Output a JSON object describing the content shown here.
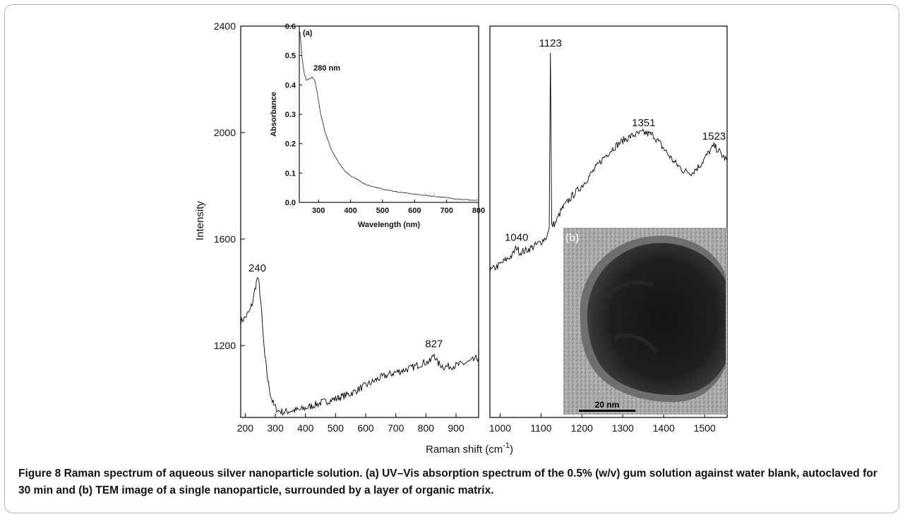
{
  "chart_data": [
    {
      "id": "raman",
      "type": "line",
      "xlabel": "Raman shift (cm",
      "xlabel_superscript": "-1",
      "xlabel_suffix": ")",
      "ylabel": "Intensity",
      "xlim_left": [
        185,
        975
      ],
      "xlim_right": [
        975,
        1555
      ],
      "ylim": [
        930,
        2400
      ],
      "x_ticks_left": [
        200,
        300,
        400,
        500,
        600,
        700,
        800,
        900
      ],
      "x_ticks_right": [
        1000,
        1100,
        1200,
        1300,
        1400,
        1500
      ],
      "y_ticks": [
        1200,
        1600,
        2000,
        2400
      ],
      "series": [
        {
          "points": [
            [
              185,
              1290
            ],
            [
              200,
              1305
            ],
            [
              215,
              1330
            ],
            [
              225,
              1365
            ],
            [
              232,
              1410
            ],
            [
              240,
              1455
            ],
            [
              246,
              1430
            ],
            [
              252,
              1360
            ],
            [
              258,
              1260
            ],
            [
              265,
              1160
            ],
            [
              275,
              1070
            ],
            [
              285,
              1010
            ],
            [
              295,
              975
            ],
            [
              310,
              955
            ],
            [
              330,
              950
            ],
            [
              350,
              955
            ],
            [
              380,
              958
            ],
            [
              400,
              965
            ],
            [
              450,
              985
            ],
            [
              500,
              1000
            ],
            [
              550,
              1020
            ],
            [
              600,
              1050
            ],
            [
              650,
              1080
            ],
            [
              700,
              1100
            ],
            [
              750,
              1115
            ],
            [
              790,
              1135
            ],
            [
              815,
              1140
            ],
            [
              827,
              1170
            ],
            [
              838,
              1135
            ],
            [
              860,
              1120
            ],
            [
              900,
              1125
            ],
            [
              950,
              1140
            ],
            [
              975,
              1155
            ]
          ]
        },
        {
          "points": [
            [
              975,
              1480
            ],
            [
              1000,
              1505
            ],
            [
              1030,
              1540
            ],
            [
              1040,
              1570
            ],
            [
              1048,
              1550
            ],
            [
              1060,
              1555
            ],
            [
              1080,
              1570
            ],
            [
              1100,
              1590
            ],
            [
              1115,
              1610
            ],
            [
              1120,
              1640
            ],
            [
              1123,
              2300
            ],
            [
              1126,
              1650
            ],
            [
              1135,
              1660
            ],
            [
              1150,
              1710
            ],
            [
              1175,
              1760
            ],
            [
              1200,
              1800
            ],
            [
              1225,
              1850
            ],
            [
              1250,
              1900
            ],
            [
              1275,
              1940
            ],
            [
              1300,
              1970
            ],
            [
              1325,
              1990
            ],
            [
              1351,
              2000
            ],
            [
              1375,
              1990
            ],
            [
              1400,
              1940
            ],
            [
              1425,
              1890
            ],
            [
              1450,
              1855
            ],
            [
              1470,
              1850
            ],
            [
              1490,
              1880
            ],
            [
              1510,
              1925
            ],
            [
              1523,
              1950
            ],
            [
              1535,
              1930
            ],
            [
              1545,
              1910
            ],
            [
              1555,
              1895
            ]
          ]
        }
      ],
      "annotations": [
        {
          "label": "240",
          "x": 240,
          "y": 1455
        },
        {
          "label": "827",
          "x": 827,
          "y": 1170
        },
        {
          "label": "1040",
          "x": 1040,
          "y": 1570
        },
        {
          "label": "1123",
          "x": 1123,
          "y": 2300
        },
        {
          "label": "1351",
          "x": 1351,
          "y": 2000
        },
        {
          "label": "1523",
          "x": 1523,
          "y": 1950
        }
      ]
    },
    {
      "id": "uvvis",
      "type": "line",
      "panel_label": "(a)",
      "xlabel": "Wavelength (nm)",
      "ylabel": "Absorbance",
      "xlim": [
        240,
        800
      ],
      "ylim": [
        0,
        0.6
      ],
      "x_ticks": [
        300,
        400,
        500,
        600,
        700,
        800
      ],
      "y_ticks": [
        0.0,
        0.1,
        0.2,
        0.3,
        0.4,
        0.5,
        0.6
      ],
      "series": [
        {
          "points": [
            [
              242,
              0.58
            ],
            [
              248,
              0.5
            ],
            [
              255,
              0.44
            ],
            [
              262,
              0.415
            ],
            [
              270,
              0.42
            ],
            [
              280,
              0.425
            ],
            [
              288,
              0.415
            ],
            [
              295,
              0.38
            ],
            [
              305,
              0.31
            ],
            [
              320,
              0.24
            ],
            [
              340,
              0.18
            ],
            [
              360,
              0.14
            ],
            [
              380,
              0.11
            ],
            [
              400,
              0.09
            ],
            [
              450,
              0.06
            ],
            [
              500,
              0.045
            ],
            [
              550,
              0.035
            ],
            [
              600,
              0.028
            ],
            [
              650,
              0.022
            ],
            [
              700,
              0.016
            ],
            [
              750,
              0.01
            ],
            [
              800,
              0.006
            ]
          ]
        }
      ],
      "annotations": [
        {
          "label": "280 nm",
          "x": 280,
          "y": 0.425
        }
      ]
    }
  ],
  "inset_b": {
    "panel_label": "(b)",
    "scale_bar_label": "20 nm"
  },
  "caption": {
    "label": "Figure 8",
    "title": "Raman spectrum of aqueous silver nanoparticle solution.",
    "description": "(a) UV–Vis absorption spectrum of the 0.5% (w/v) gum solution against water blank, autoclaved for 30 min and (b) TEM image of a single nanoparticle, surrounded by a layer of organic matrix."
  }
}
